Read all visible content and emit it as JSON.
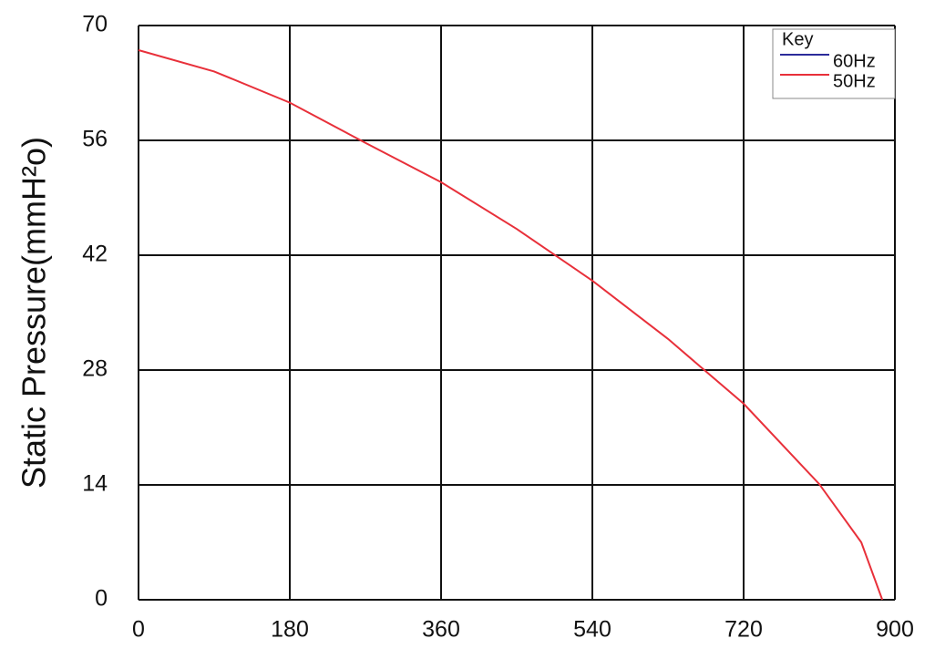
{
  "chart_data": {
    "type": "line",
    "y_label": "Static Pressure(mmH²o)",
    "x": [
      0,
      90,
      180,
      270,
      360,
      450,
      540,
      630,
      720,
      810,
      860,
      885
    ],
    "series": [
      {
        "name": "60Hz",
        "color": "#2b2b9a",
        "values": [
          null,
          null,
          null,
          null,
          null,
          null,
          null,
          null,
          null,
          null,
          null,
          null
        ]
      },
      {
        "name": "50Hz",
        "color": "#e8303a",
        "values": [
          67,
          64.4,
          60.6,
          55.7,
          50.9,
          45.2,
          38.9,
          31.8,
          23.9,
          14.1,
          7,
          0
        ]
      }
    ],
    "xlim": [
      0,
      900
    ],
    "xticks": [
      0,
      180,
      360,
      540,
      720,
      900
    ],
    "ylim": [
      0,
      70
    ],
    "yticks": [
      0,
      14,
      28,
      42,
      56,
      70
    ],
    "grid": true,
    "legend": {
      "title": "Key",
      "position": "upper right"
    }
  }
}
